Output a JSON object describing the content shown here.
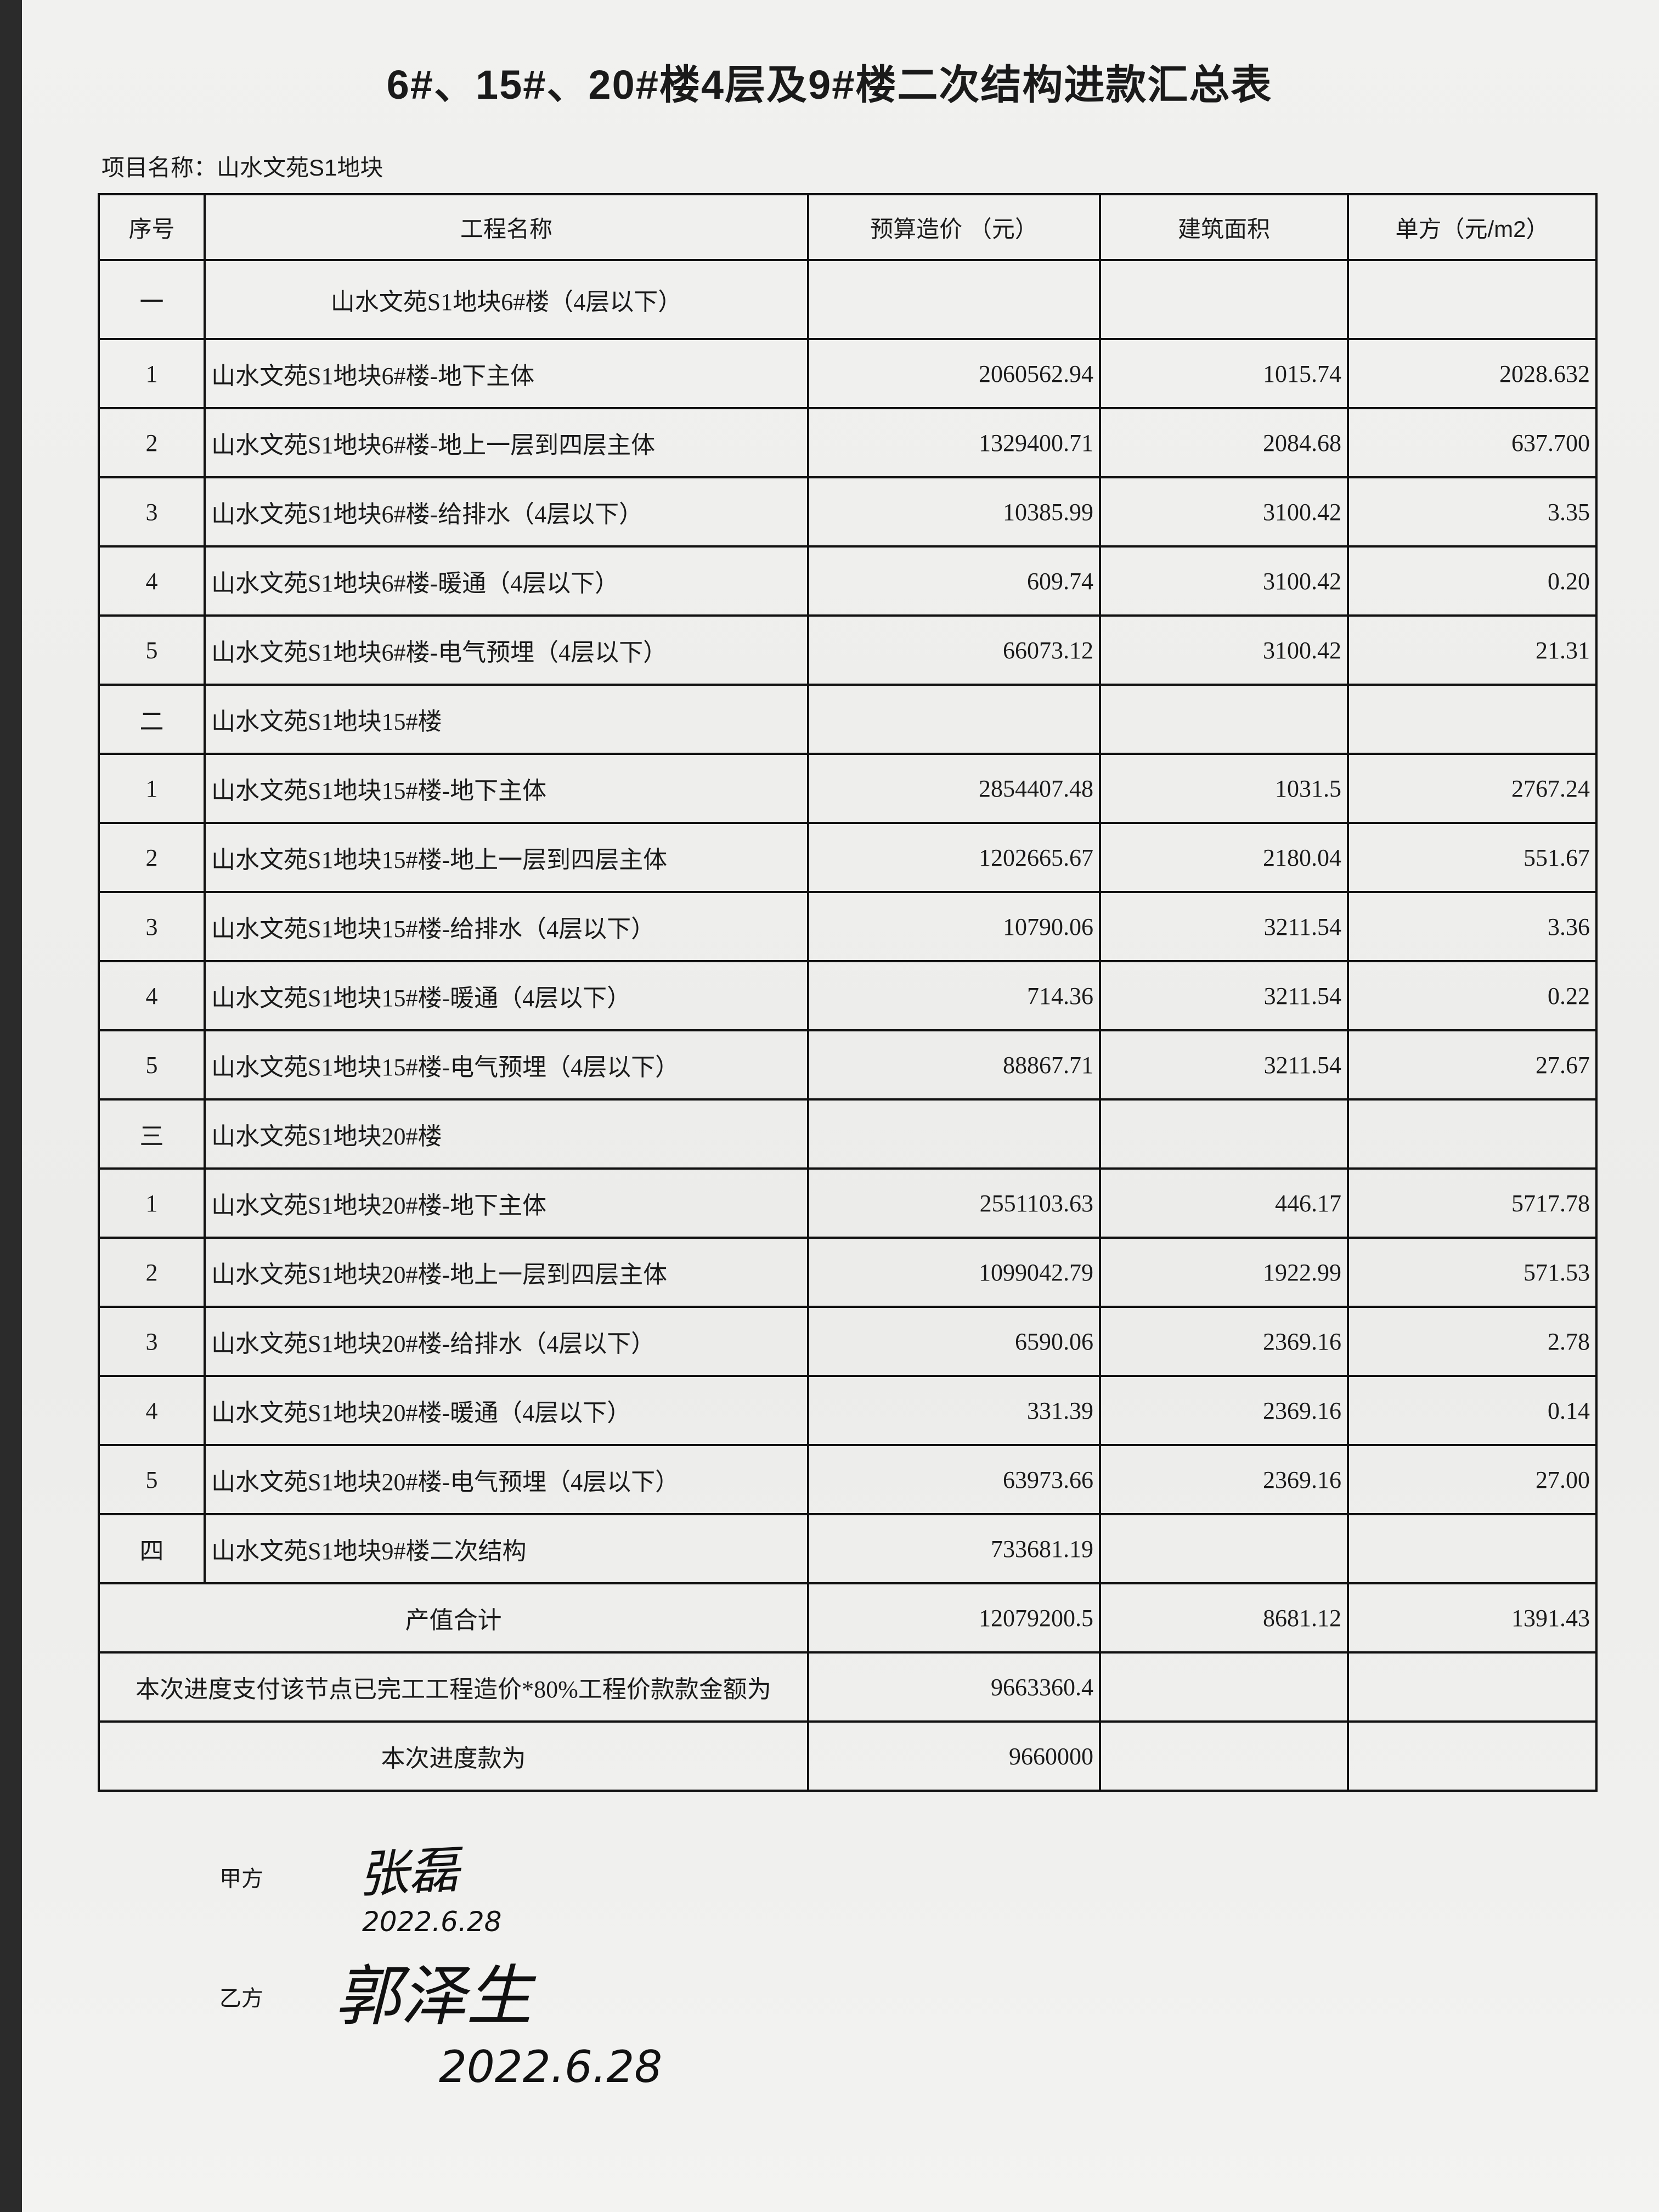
{
  "title": "6#、15#、20#楼4层及9#楼二次结构进款汇总表",
  "project_label": "项目名称：山水文苑S1地块",
  "columns": [
    "序号",
    "工程名称",
    "预算造价 （元）",
    "建筑面积",
    "单方（元/m2）"
  ],
  "rows": [
    {
      "no": "一",
      "name": "山水文苑S1地块6#楼（4层以下）",
      "cost": "",
      "area": "",
      "unit": "",
      "group": true,
      "center": true
    },
    {
      "no": "1",
      "name": "山水文苑S1地块6#楼-地下主体",
      "cost": "2060562.94",
      "area": "1015.74",
      "unit": "2028.632"
    },
    {
      "no": "2",
      "name": "山水文苑S1地块6#楼-地上一层到四层主体",
      "cost": "1329400.71",
      "area": "2084.68",
      "unit": "637.700"
    },
    {
      "no": "3",
      "name": "山水文苑S1地块6#楼-给排水（4层以下）",
      "cost": "10385.99",
      "area": "3100.42",
      "unit": "3.35"
    },
    {
      "no": "4",
      "name": "山水文苑S1地块6#楼-暖通（4层以下）",
      "cost": "609.74",
      "area": "3100.42",
      "unit": "0.20"
    },
    {
      "no": "5",
      "name": "山水文苑S1地块6#楼-电气预埋（4层以下）",
      "cost": "66073.12",
      "area": "3100.42",
      "unit": "21.31"
    },
    {
      "no": "二",
      "name": "山水文苑S1地块15#楼",
      "cost": "",
      "area": "",
      "unit": ""
    },
    {
      "no": "1",
      "name": "山水文苑S1地块15#楼-地下主体",
      "cost": "2854407.48",
      "area": "1031.5",
      "unit": "2767.24"
    },
    {
      "no": "2",
      "name": "山水文苑S1地块15#楼-地上一层到四层主体",
      "cost": "1202665.67",
      "area": "2180.04",
      "unit": "551.67"
    },
    {
      "no": "3",
      "name": "山水文苑S1地块15#楼-给排水（4层以下）",
      "cost": "10790.06",
      "area": "3211.54",
      "unit": "3.36"
    },
    {
      "no": "4",
      "name": "山水文苑S1地块15#楼-暖通（4层以下）",
      "cost": "714.36",
      "area": "3211.54",
      "unit": "0.22"
    },
    {
      "no": "5",
      "name": "山水文苑S1地块15#楼-电气预埋（4层以下）",
      "cost": "88867.71",
      "area": "3211.54",
      "unit": "27.67"
    },
    {
      "no": "三",
      "name": "山水文苑S1地块20#楼",
      "cost": "",
      "area": "",
      "unit": ""
    },
    {
      "no": "1",
      "name": "山水文苑S1地块20#楼-地下主体",
      "cost": "2551103.63",
      "area": "446.17",
      "unit": "5717.78"
    },
    {
      "no": "2",
      "name": "山水文苑S1地块20#楼-地上一层到四层主体",
      "cost": "1099042.79",
      "area": "1922.99",
      "unit": "571.53"
    },
    {
      "no": "3",
      "name": "山水文苑S1地块20#楼-给排水（4层以下）",
      "cost": "6590.06",
      "area": "2369.16",
      "unit": "2.78"
    },
    {
      "no": "4",
      "name": "山水文苑S1地块20#楼-暖通（4层以下）",
      "cost": "331.39",
      "area": "2369.16",
      "unit": "0.14"
    },
    {
      "no": "5",
      "name": "山水文苑S1地块20#楼-电气预埋（4层以下）",
      "cost": "63973.66",
      "area": "2369.16",
      "unit": "27.00"
    },
    {
      "no": "四",
      "name": "山水文苑S1地块9#楼二次结构",
      "cost": "733681.19",
      "area": "",
      "unit": ""
    }
  ],
  "summary": [
    {
      "label": "产值合计",
      "cost": "12079200.5",
      "area": "8681.12",
      "unit": "1391.43"
    },
    {
      "label": "本次进度支付该节点已完工工程造价*80%工程价款款金额为",
      "cost": "9663360.4",
      "area": "",
      "unit": ""
    },
    {
      "label": "本次进度款为",
      "cost": "9660000",
      "area": "",
      "unit": ""
    }
  ],
  "signatures": {
    "party_a_label": "甲方",
    "party_a_signature": "张磊",
    "party_a_date": "2022.6.28",
    "party_b_label": "乙方",
    "party_b_signature": "郭泽生",
    "party_b_date": "2022.6.28"
  }
}
